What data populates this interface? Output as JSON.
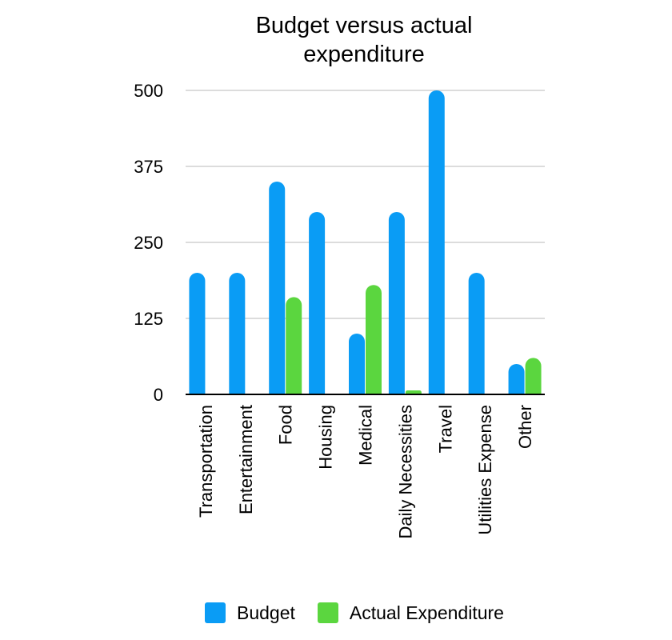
{
  "chart_data": {
    "type": "bar",
    "title_lines": [
      "Budget versus actual",
      "expenditure"
    ],
    "title": "Budget versus actual expenditure",
    "categories": [
      "Transportation",
      "Entertainment",
      "Food",
      "Housing",
      "Medical",
      "Daily Necessities",
      "Travel",
      "Utilities Expense",
      "Other"
    ],
    "series": [
      {
        "name": "Budget",
        "color": "#0a9cf5",
        "values": [
          200,
          200,
          350,
          300,
          100,
          300,
          500,
          200,
          50
        ]
      },
      {
        "name": "Actual Expenditure",
        "color": "#5bd63f",
        "values": [
          0,
          0,
          160,
          0,
          180,
          5,
          0,
          0,
          60
        ]
      }
    ],
    "yticks": [
      "0",
      "125",
      "250",
      "375",
      "500"
    ],
    "ytick_values": [
      0,
      125,
      250,
      375,
      500
    ],
    "ylim": [
      0,
      500
    ],
    "xlabel": "",
    "ylabel": "",
    "grid": true,
    "legend_position": "bottom"
  }
}
